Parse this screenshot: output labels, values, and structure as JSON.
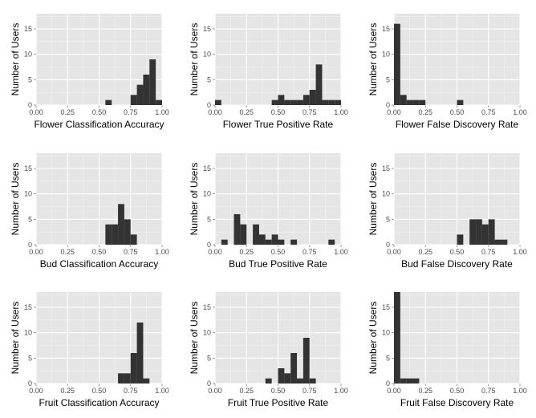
{
  "chart_data": [
    {
      "type": "bar",
      "xlabel": "Flower Classification Accuracy",
      "ylabel": "Number of Users",
      "xlim": [
        0,
        1
      ],
      "ylim": [
        0,
        18
      ],
      "xticks": [
        "0.00",
        "0.25",
        "0.50",
        "0.75",
        "1.00"
      ],
      "yticks": [
        "0",
        "5",
        "10",
        "15"
      ],
      "bins": [
        {
          "x0": 0.55,
          "x1": 0.6,
          "count": 1
        },
        {
          "x0": 0.75,
          "x1": 0.8,
          "count": 2
        },
        {
          "x0": 0.8,
          "x1": 0.85,
          "count": 4
        },
        {
          "x0": 0.85,
          "x1": 0.9,
          "count": 6
        },
        {
          "x0": 0.9,
          "x1": 0.95,
          "count": 9
        },
        {
          "x0": 0.95,
          "x1": 1.0,
          "count": 1
        }
      ]
    },
    {
      "type": "bar",
      "xlabel": "Flower True Positive Rate",
      "ylabel": "Number of Users",
      "xlim": [
        0,
        1
      ],
      "ylim": [
        0,
        18
      ],
      "xticks": [
        "0.00",
        "0.25",
        "0.50",
        "0.75",
        "1.00"
      ],
      "yticks": [
        "0",
        "5",
        "10",
        "15"
      ],
      "bins": [
        {
          "x0": 0.0,
          "x1": 0.05,
          "count": 1
        },
        {
          "x0": 0.45,
          "x1": 0.5,
          "count": 1
        },
        {
          "x0": 0.5,
          "x1": 0.55,
          "count": 2
        },
        {
          "x0": 0.55,
          "x1": 0.6,
          "count": 1
        },
        {
          "x0": 0.6,
          "x1": 0.65,
          "count": 1
        },
        {
          "x0": 0.65,
          "x1": 0.7,
          "count": 1
        },
        {
          "x0": 0.7,
          "x1": 0.75,
          "count": 2
        },
        {
          "x0": 0.75,
          "x1": 0.8,
          "count": 3
        },
        {
          "x0": 0.8,
          "x1": 0.85,
          "count": 8
        },
        {
          "x0": 0.85,
          "x1": 0.9,
          "count": 1
        },
        {
          "x0": 0.9,
          "x1": 0.95,
          "count": 1
        },
        {
          "x0": 0.95,
          "x1": 1.0,
          "count": 1
        }
      ]
    },
    {
      "type": "bar",
      "xlabel": "Flower False Discovery Rate",
      "ylabel": "Number of Users",
      "xlim": [
        0,
        1
      ],
      "ylim": [
        0,
        18
      ],
      "xticks": [
        "0.00",
        "0.25",
        "0.50",
        "0.75",
        "1.00"
      ],
      "yticks": [
        "0",
        "5",
        "10",
        "15"
      ],
      "bins": [
        {
          "x0": 0.0,
          "x1": 0.05,
          "count": 16
        },
        {
          "x0": 0.05,
          "x1": 0.1,
          "count": 2
        },
        {
          "x0": 0.1,
          "x1": 0.15,
          "count": 1
        },
        {
          "x0": 0.15,
          "x1": 0.2,
          "count": 1
        },
        {
          "x0": 0.2,
          "x1": 0.25,
          "count": 1
        },
        {
          "x0": 0.5,
          "x1": 0.55,
          "count": 1
        }
      ]
    },
    {
      "type": "bar",
      "xlabel": "Bud Classification Accuracy",
      "ylabel": "Number of Users",
      "xlim": [
        0,
        1
      ],
      "ylim": [
        0,
        18
      ],
      "xticks": [
        "0.00",
        "0.25",
        "0.50",
        "0.75",
        "1.00"
      ],
      "yticks": [
        "0",
        "5",
        "10",
        "15"
      ],
      "bins": [
        {
          "x0": 0.55,
          "x1": 0.6,
          "count": 4
        },
        {
          "x0": 0.6,
          "x1": 0.65,
          "count": 4
        },
        {
          "x0": 0.65,
          "x1": 0.7,
          "count": 8
        },
        {
          "x0": 0.7,
          "x1": 0.75,
          "count": 5
        },
        {
          "x0": 0.75,
          "x1": 0.8,
          "count": 2
        }
      ]
    },
    {
      "type": "bar",
      "xlabel": "Bud True Positive Rate",
      "ylabel": "Number of Users",
      "xlim": [
        0,
        1
      ],
      "ylim": [
        0,
        18
      ],
      "xticks": [
        "0.00",
        "0.25",
        "0.50",
        "0.75",
        "1.00"
      ],
      "yticks": [
        "0",
        "5",
        "10",
        "15"
      ],
      "bins": [
        {
          "x0": 0.05,
          "x1": 0.1,
          "count": 1
        },
        {
          "x0": 0.15,
          "x1": 0.2,
          "count": 6
        },
        {
          "x0": 0.2,
          "x1": 0.25,
          "count": 4
        },
        {
          "x0": 0.3,
          "x1": 0.35,
          "count": 4
        },
        {
          "x0": 0.35,
          "x1": 0.4,
          "count": 2
        },
        {
          "x0": 0.4,
          "x1": 0.45,
          "count": 1
        },
        {
          "x0": 0.45,
          "x1": 0.5,
          "count": 2
        },
        {
          "x0": 0.5,
          "x1": 0.55,
          "count": 1
        },
        {
          "x0": 0.6,
          "x1": 0.65,
          "count": 1
        },
        {
          "x0": 0.9,
          "x1": 0.95,
          "count": 1
        }
      ]
    },
    {
      "type": "bar",
      "xlabel": "Bud False Discovery Rate",
      "ylabel": "Number of Users",
      "xlim": [
        0,
        1
      ],
      "ylim": [
        0,
        18
      ],
      "xticks": [
        "0.00",
        "0.25",
        "0.50",
        "0.75",
        "1.00"
      ],
      "yticks": [
        "0",
        "5",
        "10",
        "15"
      ],
      "bins": [
        {
          "x0": 0.5,
          "x1": 0.55,
          "count": 2
        },
        {
          "x0": 0.6,
          "x1": 0.65,
          "count": 5
        },
        {
          "x0": 0.65,
          "x1": 0.7,
          "count": 5
        },
        {
          "x0": 0.7,
          "x1": 0.75,
          "count": 4
        },
        {
          "x0": 0.75,
          "x1": 0.8,
          "count": 5
        },
        {
          "x0": 0.8,
          "x1": 0.85,
          "count": 1
        },
        {
          "x0": 0.85,
          "x1": 0.9,
          "count": 1
        }
      ]
    },
    {
      "type": "bar",
      "xlabel": "Fruit Classification Accuracy",
      "ylabel": "Number of Users",
      "xlim": [
        0,
        1
      ],
      "ylim": [
        0,
        18
      ],
      "xticks": [
        "0.00",
        "0.25",
        "0.50",
        "0.75",
        "1.00"
      ],
      "yticks": [
        "0",
        "5",
        "10",
        "15"
      ],
      "bins": [
        {
          "x0": 0.65,
          "x1": 0.7,
          "count": 2
        },
        {
          "x0": 0.7,
          "x1": 0.75,
          "count": 2
        },
        {
          "x0": 0.75,
          "x1": 0.8,
          "count": 6
        },
        {
          "x0": 0.8,
          "x1": 0.85,
          "count": 12
        },
        {
          "x0": 0.85,
          "x1": 0.9,
          "count": 1
        }
      ]
    },
    {
      "type": "bar",
      "xlabel": "Fruit True Positive Rate",
      "ylabel": "Number of Users",
      "xlim": [
        0,
        1
      ],
      "ylim": [
        0,
        18
      ],
      "xticks": [
        "0.00",
        "0.25",
        "0.50",
        "0.75",
        "1.00"
      ],
      "yticks": [
        "0",
        "5",
        "10",
        "15"
      ],
      "bins": [
        {
          "x0": 0.4,
          "x1": 0.45,
          "count": 1
        },
        {
          "x0": 0.5,
          "x1": 0.55,
          "count": 3
        },
        {
          "x0": 0.55,
          "x1": 0.6,
          "count": 2
        },
        {
          "x0": 0.6,
          "x1": 0.65,
          "count": 6
        },
        {
          "x0": 0.65,
          "x1": 0.7,
          "count": 1
        },
        {
          "x0": 0.7,
          "x1": 0.75,
          "count": 9
        },
        {
          "x0": 0.75,
          "x1": 0.8,
          "count": 1
        }
      ]
    },
    {
      "type": "bar",
      "xlabel": "Fruit False Discovery Rate",
      "ylabel": "Number of Users",
      "xlim": [
        0,
        1
      ],
      "ylim": [
        0,
        18
      ],
      "xticks": [
        "0.00",
        "0.25",
        "0.50",
        "0.75",
        "1.00"
      ],
      "yticks": [
        "0",
        "5",
        "10",
        "15"
      ],
      "bins": [
        {
          "x0": 0.0,
          "x1": 0.05,
          "count": 18
        },
        {
          "x0": 0.05,
          "x1": 0.1,
          "count": 1
        },
        {
          "x0": 0.1,
          "x1": 0.15,
          "count": 1
        },
        {
          "x0": 0.15,
          "x1": 0.2,
          "count": 1
        }
      ]
    }
  ],
  "colors": {
    "panel_background": "#e5e5e5",
    "grid_major": "#ffffff",
    "grid_minor": "#f2f2f2",
    "bar_fill": "#333333",
    "tick_text": "#4d4d4d"
  }
}
